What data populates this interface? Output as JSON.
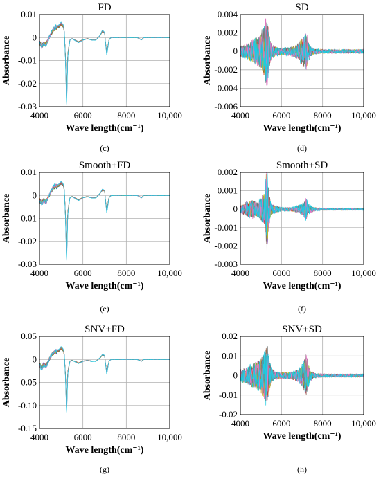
{
  "chart_data": [
    {
      "type": "line",
      "panel": "c",
      "title": "FD",
      "xlabel": "Wave length(cm⁻¹)",
      "ylabel": "Absorbance",
      "caption": "(c)",
      "xlim": [
        4000,
        10000
      ],
      "ylim": [
        -0.03,
        0.01
      ],
      "xticks": [
        4000,
        6000,
        8000,
        10000
      ],
      "xtick_labels": [
        "4000",
        "6000",
        "8000",
        "10,000"
      ],
      "yticks": [
        -0.03,
        -0.02,
        -0.01,
        0,
        0.01
      ],
      "ytick_labels": [
        "-0.03",
        "-0.02",
        "-0.01",
        "0",
        "0.01"
      ],
      "grid": true,
      "multi_spectra": true,
      "series": [
        {
          "x": [
            4000,
            4100,
            4200,
            4300,
            4400,
            4500,
            4600,
            4700,
            4800,
            4900,
            5000,
            5100,
            5150,
            5200,
            5250,
            5300,
            5400,
            5500,
            5600,
            5800,
            6000,
            6200,
            6400,
            6600,
            6800,
            6900,
            7000,
            7050,
            7100,
            7150,
            7200,
            7300,
            7500,
            7800,
            8000,
            8200,
            8500,
            8700,
            8800,
            9000,
            9500,
            10000
          ],
          "values": [
            -0.002,
            -0.004,
            -0.0025,
            -0.003,
            -0.001,
            0.001,
            0.003,
            0.004,
            0.0045,
            0.005,
            0.006,
            0.005,
            0.002,
            -0.01,
            -0.029,
            -0.008,
            -0.001,
            -0.0005,
            -0.001,
            -0.002,
            -0.001,
            -0.0005,
            -0.001,
            -0.001,
            0.001,
            0.003,
            0.002,
            -0.003,
            -0.007,
            -0.004,
            -0.001,
            0.0,
            0.0,
            0.0,
            0.0,
            0.0,
            0.0,
            -0.001,
            0.0,
            0.0,
            0.0,
            0.0
          ]
        }
      ]
    },
    {
      "type": "line",
      "panel": "d",
      "title": "SD",
      "xlabel": "Wave length(cm⁻¹)",
      "ylabel": "Absorbance",
      "caption": "(d)",
      "xlim": [
        4000,
        10000
      ],
      "ylim": [
        -0.006,
        0.004
      ],
      "xticks": [
        4000,
        6000,
        8000,
        10000
      ],
      "xtick_labels": [
        "4000",
        "6000",
        "8000",
        "10,000"
      ],
      "yticks": [
        -0.006,
        -0.004,
        -0.002,
        0,
        0.002,
        0.004
      ],
      "ytick_labels": [
        "-0.006",
        "-0.004",
        "-0.002",
        "0",
        "0.002",
        "0.004"
      ],
      "grid": true,
      "multi_spectra": true,
      "series": [
        {
          "x": [
            4000,
            4300,
            4600,
            4800,
            5000,
            5100,
            5200,
            5250,
            5300,
            5350,
            5400,
            5500,
            5700,
            6000,
            6500,
            6800,
            7000,
            7100,
            7200,
            7300,
            7400,
            7600,
            8000,
            8500,
            9000,
            9500,
            10000
          ],
          "amplitude": [
            0.0006,
            0.0008,
            0.0012,
            0.0015,
            0.002,
            0.0025,
            0.003,
            0.0035,
            0.0038,
            0.003,
            0.002,
            0.0009,
            0.0005,
            0.0004,
            0.0005,
            0.0008,
            0.0015,
            0.0018,
            0.002,
            0.0012,
            0.0006,
            0.0003,
            0.0002,
            0.0002,
            0.0002,
            0.0002,
            0.0002
          ]
        }
      ]
    },
    {
      "type": "line",
      "panel": "e",
      "title": "Smooth+FD",
      "xlabel": "Wave length(cm⁻¹)",
      "ylabel": "Absorbance",
      "caption": "(e)",
      "xlim": [
        4000,
        10000
      ],
      "ylim": [
        -0.03,
        0.01
      ],
      "xticks": [
        4000,
        6000,
        8000,
        10000
      ],
      "xtick_labels": [
        "4000",
        "6000",
        "8000",
        "10,000"
      ],
      "yticks": [
        -0.03,
        -0.02,
        -0.01,
        0,
        0.01
      ],
      "ytick_labels": [
        "-0.03",
        "-0.02",
        "-0.01",
        "0",
        "0.01"
      ],
      "grid": true,
      "multi_spectra": true,
      "series": [
        {
          "x": [
            4000,
            4100,
            4200,
            4300,
            4400,
            4500,
            4600,
            4700,
            4800,
            4900,
            5000,
            5100,
            5150,
            5200,
            5250,
            5300,
            5400,
            5500,
            5600,
            5800,
            6000,
            6200,
            6400,
            6600,
            6800,
            6900,
            7000,
            7050,
            7100,
            7150,
            7200,
            7300,
            7500,
            7800,
            8000,
            8200,
            8500,
            8700,
            8800,
            9000,
            9500,
            10000
          ],
          "values": [
            -0.002,
            -0.0035,
            -0.002,
            -0.003,
            -0.001,
            0.001,
            0.003,
            0.004,
            0.004,
            0.0045,
            0.0055,
            0.0045,
            0.002,
            -0.01,
            -0.028,
            -0.008,
            -0.001,
            -0.0005,
            -0.001,
            -0.002,
            -0.001,
            -0.0005,
            -0.001,
            -0.001,
            0.001,
            0.0025,
            0.002,
            -0.003,
            -0.007,
            -0.004,
            -0.001,
            0.0,
            0.0,
            0.0,
            0.0,
            0.0,
            0.0,
            -0.001,
            0.0,
            0.0,
            0.0,
            0.0
          ]
        }
      ]
    },
    {
      "type": "line",
      "panel": "f",
      "title": "Smooth+SD",
      "xlabel": "Wave length(cm⁻¹)",
      "ylabel": "Absorbance",
      "caption": "(f)",
      "xlim": [
        4000,
        10000
      ],
      "ylim": [
        -0.003,
        0.002
      ],
      "xticks": [
        4000,
        6000,
        8000,
        10000
      ],
      "xtick_labels": [
        "4000",
        "6000",
        "8000",
        "10,000"
      ],
      "yticks": [
        -0.003,
        -0.002,
        -0.001,
        0,
        0.001,
        0.002
      ],
      "ytick_labels": [
        "-0.003",
        "-0.002",
        "-0.001",
        "0",
        "0.001",
        "0.002"
      ],
      "grid": true,
      "multi_spectra": true,
      "series": [
        {
          "x": [
            4000,
            4300,
            4600,
            4800,
            5000,
            5100,
            5200,
            5250,
            5300,
            5350,
            5400,
            5500,
            5700,
            6000,
            6500,
            6800,
            7000,
            7100,
            7200,
            7300,
            7400,
            7600,
            8000,
            8500,
            9000,
            9500,
            10000
          ],
          "amplitude": [
            0.0002,
            0.0004,
            0.0005,
            0.0004,
            0.0006,
            0.0008,
            0.0012,
            0.0018,
            0.0024,
            0.0015,
            0.0008,
            0.0003,
            0.0002,
            0.0001,
            0.0001,
            0.0002,
            0.0003,
            0.0004,
            0.0006,
            0.0003,
            0.0002,
            0.0001,
            5e-05,
            5e-05,
            5e-05,
            5e-05,
            5e-05
          ]
        }
      ]
    },
    {
      "type": "line",
      "panel": "g",
      "title": "SNV+FD",
      "xlabel": "Wave length(cm⁻¹)",
      "ylabel": "Absorbance",
      "caption": "(g)",
      "xlim": [
        4000,
        10000
      ],
      "ylim": [
        -0.15,
        0.05
      ],
      "xticks": [
        4000,
        6000,
        8000,
        10000
      ],
      "xtick_labels": [
        "4000",
        "6000",
        "8000",
        "10,000"
      ],
      "yticks": [
        -0.15,
        -0.1,
        -0.05,
        0,
        0.05
      ],
      "ytick_labels": [
        "-0.15",
        "-0.10",
        "-0.05",
        "0",
        "0.05"
      ],
      "grid": true,
      "multi_spectra": true,
      "series": [
        {
          "x": [
            4000,
            4100,
            4200,
            4300,
            4400,
            4500,
            4600,
            4700,
            4800,
            4900,
            5000,
            5100,
            5150,
            5200,
            5250,
            5300,
            5400,
            5500,
            5600,
            5800,
            6000,
            6200,
            6400,
            6600,
            6800,
            6900,
            7000,
            7050,
            7100,
            7150,
            7200,
            7300,
            7500,
            7800,
            8000,
            8200,
            8500,
            8700,
            8800,
            9000,
            9500,
            10000
          ],
          "values": [
            -0.01,
            -0.02,
            -0.01,
            -0.015,
            -0.005,
            0.005,
            0.012,
            0.016,
            0.018,
            0.02,
            0.025,
            0.02,
            0.008,
            -0.04,
            -0.115,
            -0.03,
            -0.004,
            -0.002,
            -0.004,
            -0.008,
            -0.004,
            -0.002,
            -0.004,
            -0.004,
            0.004,
            0.01,
            0.008,
            -0.012,
            -0.03,
            -0.016,
            -0.004,
            0.0,
            0.0,
            0.0,
            0.0,
            0.0,
            0.0,
            -0.004,
            0.0,
            0.0,
            0.0,
            0.0
          ]
        }
      ]
    },
    {
      "type": "line",
      "panel": "h",
      "title": "SNV+SD",
      "xlabel": "Wave length(cm⁻¹)",
      "ylabel": "Absorbance",
      "caption": "(h)",
      "xlim": [
        4000,
        10000
      ],
      "ylim": [
        -0.02,
        0.02
      ],
      "xticks": [
        4000,
        6000,
        8000,
        10000
      ],
      "xtick_labels": [
        "4000",
        "6000",
        "8000",
        "10,000"
      ],
      "yticks": [
        -0.02,
        -0.01,
        0,
        0.01,
        0.02
      ],
      "ytick_labels": [
        "-0.02",
        "-0.01",
        "0",
        "0.01",
        "0.02"
      ],
      "grid": true,
      "multi_spectra": true,
      "series": [
        {
          "x": [
            4000,
            4300,
            4600,
            4800,
            5000,
            5100,
            5200,
            5250,
            5300,
            5350,
            5400,
            5500,
            5700,
            6000,
            6500,
            6800,
            7000,
            7100,
            7200,
            7300,
            7400,
            7600,
            8000,
            8500,
            9000,
            9500,
            10000
          ],
          "amplitude": [
            0.003,
            0.004,
            0.006,
            0.007,
            0.009,
            0.011,
            0.013,
            0.015,
            0.016,
            0.013,
            0.009,
            0.004,
            0.002,
            0.0015,
            0.002,
            0.003,
            0.006,
            0.008,
            0.012,
            0.006,
            0.003,
            0.0012,
            0.0008,
            0.0008,
            0.0008,
            0.0008,
            0.0008
          ]
        }
      ]
    }
  ],
  "colors": {
    "spectra": [
      "#1f77b4",
      "#2ca02c",
      "#ff7f0e",
      "#d62728",
      "#9467bd",
      "#8c564b",
      "#bcbd22",
      "#17becf",
      "#7f7f7f",
      "#e377c2",
      "#1ecbe1"
    ],
    "grid": "#b0b0b0",
    "axis": "#000000"
  }
}
